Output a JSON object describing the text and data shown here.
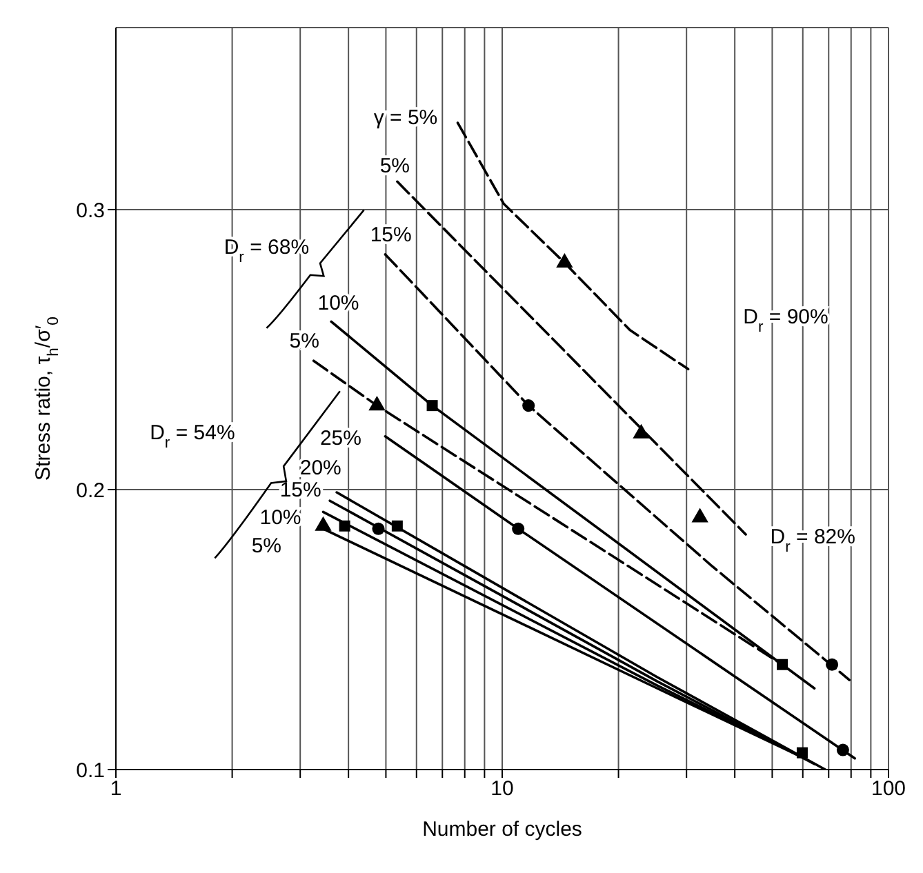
{
  "chart_data": {
    "type": "line",
    "xlabel": "Number of cycles",
    "ylabel": "Stress ratio, τ$_{h}$/σ′$_{0}$",
    "log": "x",
    "grid": true,
    "marker": "none",
    "xlim": [
      1,
      100
    ],
    "xticks": [
      1,
      {
        "value": 2,
        "label": null
      },
      {
        "value": 3,
        "label": null
      },
      {
        "value": 4,
        "label": null
      },
      {
        "value": 5,
        "label": null
      },
      {
        "value": 6,
        "label": null
      },
      {
        "value": 7,
        "label": null
      },
      {
        "value": 8,
        "label": null
      },
      {
        "value": 9,
        "label": null
      },
      10,
      {
        "value": 20,
        "label": null
      },
      {
        "value": 30,
        "label": null
      },
      {
        "value": 40,
        "label": null
      },
      {
        "value": 50,
        "label": null
      },
      {
        "value": 60,
        "label": null
      },
      {
        "value": 70,
        "label": null
      },
      {
        "value": 80,
        "label": null
      },
      {
        "value": 90,
        "label": null
      },
      100
    ],
    "ylim": [
      0.1,
      0.365
    ],
    "yticks": [
      0.1,
      0.2,
      0.3
    ],
    "series": [
      {
        "color": "#000000",
        "line_style": "dashed",
        "x": [
          7.67,
          10.1,
          14.5,
          21.4,
          30.3
        ],
        "values": [
          0.331,
          0.302,
          0.281,
          0.257,
          0.243
        ]
      },
      {
        "color": "#000000",
        "line_style": "dashed",
        "x": [
          5.35,
          42.7
        ],
        "values": [
          0.31,
          0.184
        ]
      },
      {
        "color": "#000000",
        "line_style": "dashed",
        "x": [
          4.98,
          11.7,
          34.7,
          79.2
        ],
        "values": [
          0.284,
          0.23,
          0.173,
          0.132
        ]
      },
      {
        "color": "#000000",
        "line_style": "solid",
        "x": [
          3.61,
          6.59,
          64.3
        ],
        "values": [
          0.26,
          0.23,
          0.129
        ]
      },
      {
        "color": "#000000",
        "line_style": "dashed",
        "x": [
          3.25,
          4.74,
          53.1
        ],
        "values": [
          0.246,
          0.23,
          0.1375
        ]
      },
      {
        "color": "#000000",
        "line_style": "solid",
        "x": [
          4.98,
          11.0,
          81.8
        ],
        "values": [
          0.219,
          0.186,
          0.104
        ]
      },
      {
        "color": "#000000",
        "line_style": "solid",
        "x": [
          3.73,
          25.2,
          68.6
        ],
        "values": [
          0.199,
          0.133,
          0.1
        ]
      },
      {
        "color": "#000000",
        "line_style": "solid",
        "x": [
          3.58,
          25.2,
          64.3
        ],
        "values": [
          0.196,
          0.1315,
          0.102
        ]
      },
      {
        "color": "#000000",
        "line_style": "solid",
        "x": [
          3.44,
          25.2,
          60.8
        ],
        "values": [
          0.192,
          0.13,
          0.104
        ]
      },
      {
        "color": "#000000",
        "line_style": "solid",
        "x": [
          3.44,
          25.2,
          57.5
        ],
        "values": [
          0.186,
          0.129,
          0.1055
        ]
      },
      {
        "type": "scatter",
        "marker": "triangle",
        "color": "#000000",
        "x": [
          14.5,
          22.9,
          32.5,
          4.74,
          3.44
        ],
        "values": [
          0.281,
          0.22,
          0.19,
          0.23,
          0.187
        ]
      },
      {
        "type": "scatter",
        "marker": "square",
        "color": "#000000",
        "x": [
          6.59,
          53.1,
          3.91,
          59.8,
          5.35
        ],
        "values": [
          0.23,
          0.1375,
          0.187,
          0.106,
          0.187
        ]
      },
      {
        "type": "scatter",
        "marker": "circle",
        "color": "#000000",
        "x": [
          11.7,
          71.4,
          4.78,
          76.2,
          11.0
        ],
        "values": [
          0.23,
          0.1375,
          0.186,
          0.107,
          0.186
        ]
      }
    ],
    "annotations": [
      "γ = 5%",
      "5%",
      "15%",
      "D$_{r}$ = 68%",
      "10%",
      "5%",
      "D$_{r}$ = 90%",
      "D$_{r}$ = 54%",
      "25%",
      "20%",
      "15%",
      "10%",
      "5%",
      "D$_{r}$ = 82%"
    ]
  }
}
